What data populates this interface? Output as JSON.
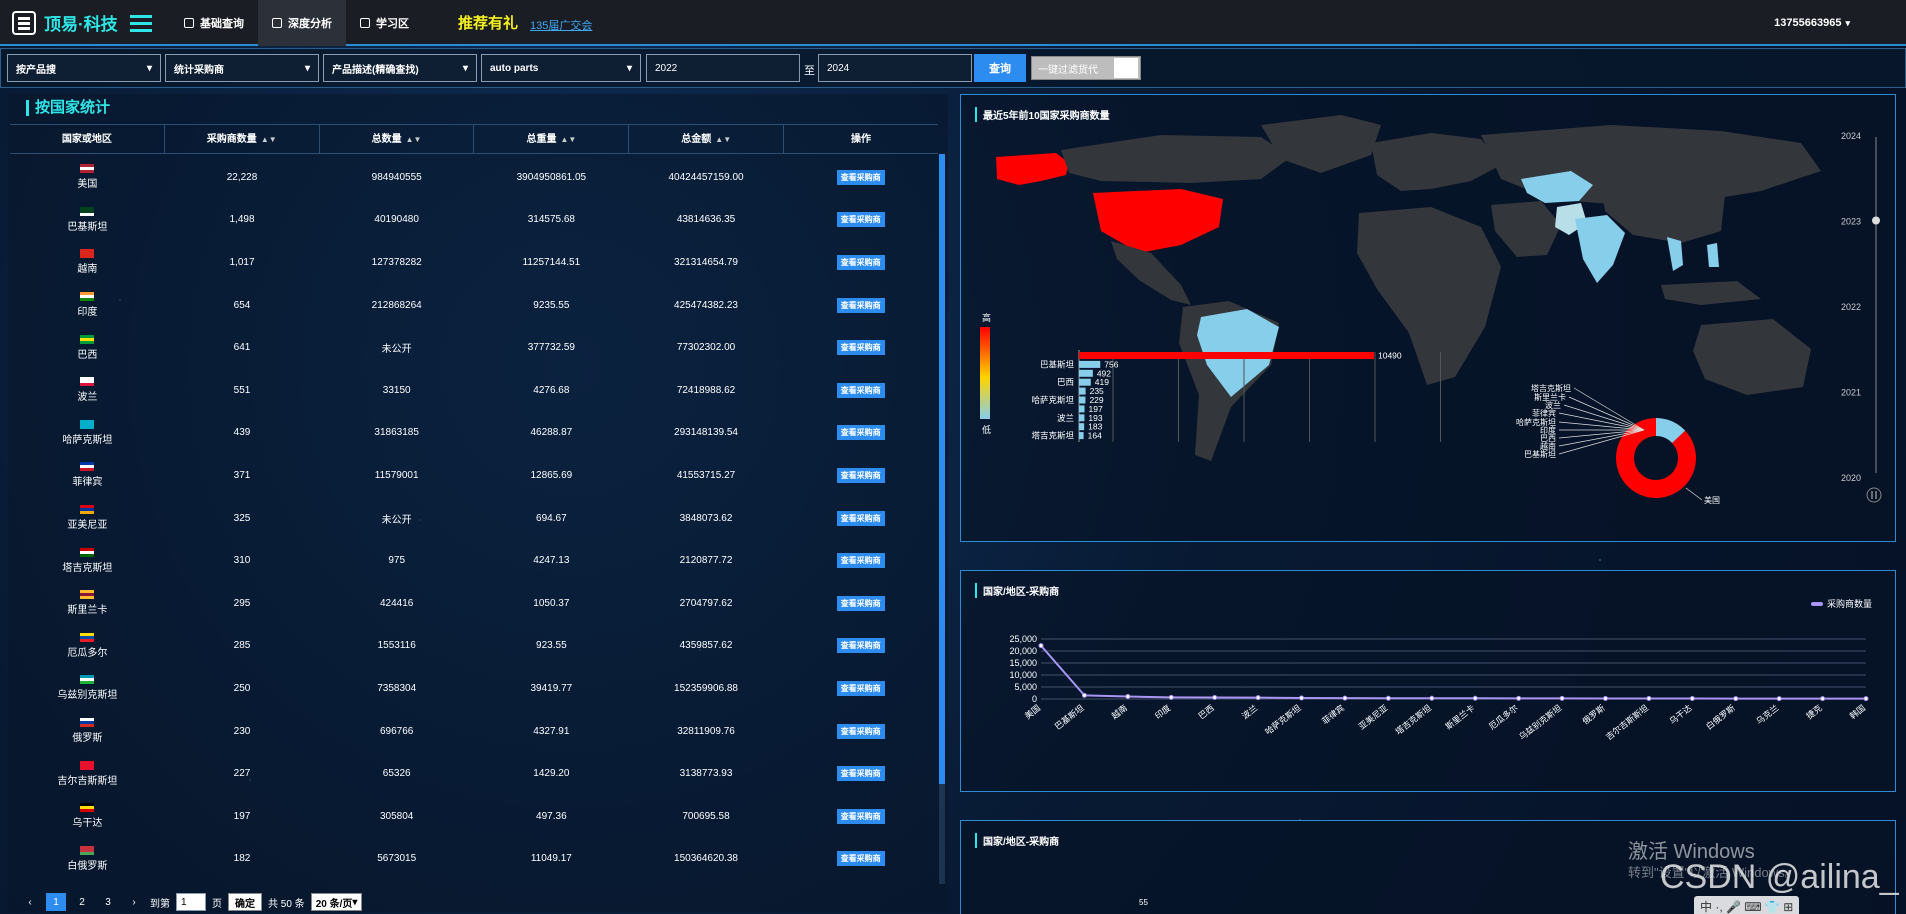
{
  "app": {
    "logo_text": "顶易·科技",
    "promo": "推荐有礼",
    "fair_link": "135届广交会",
    "phone": "13755663965"
  },
  "nav": [
    {
      "label": "基础查询"
    },
    {
      "label": "深度分析"
    },
    {
      "label": "学习区"
    }
  ],
  "filters": {
    "search_type": "按产品搜",
    "stat_type": "统计采购商",
    "desc_mode": "产品描述(精确查找)",
    "keyword": "auto parts",
    "year_from": "2022",
    "to_label": "至",
    "year_to": "2024",
    "query_label": "查询",
    "filter_goods_label": "一键过滤货代"
  },
  "left": {
    "title": "按国家统计",
    "columns": [
      "国家或地区",
      "采购商数量",
      "总数量",
      "总重量",
      "总金额",
      "操作"
    ],
    "rows": [
      {
        "country": "美国",
        "buyers": "22,228",
        "qty": "984940555",
        "weight": "3904950861.05",
        "amount": "40424457159.00",
        "action": "查看采购商",
        "flag": "us"
      },
      {
        "country": "巴基斯坦",
        "buyers": "1,498",
        "qty": "40190480",
        "weight": "314575.68",
        "amount": "43814636.35",
        "action": "查看采购商",
        "flag": "pk"
      },
      {
        "country": "越南",
        "buyers": "1,017",
        "qty": "127378282",
        "weight": "11257144.51",
        "amount": "321314654.79",
        "action": "查看采购商",
        "flag": "vn"
      },
      {
        "country": "印度",
        "buyers": "654",
        "qty": "212868264",
        "weight": "9235.55",
        "amount": "425474382.23",
        "action": "查看采购商",
        "flag": "in"
      },
      {
        "country": "巴西",
        "buyers": "641",
        "qty": "未公开",
        "weight": "377732.59",
        "amount": "77302302.00",
        "action": "查看采购商",
        "flag": "br"
      },
      {
        "country": "波兰",
        "buyers": "551",
        "qty": "33150",
        "weight": "4276.68",
        "amount": "72418988.62",
        "action": "查看采购商",
        "flag": "pl"
      },
      {
        "country": "哈萨克斯坦",
        "buyers": "439",
        "qty": "31863185",
        "weight": "46288.87",
        "amount": "293148139.54",
        "action": "查看采购商",
        "flag": "kz"
      },
      {
        "country": "菲律宾",
        "buyers": "371",
        "qty": "11579001",
        "weight": "12865.69",
        "amount": "41553715.27",
        "action": "查看采购商",
        "flag": "ph"
      },
      {
        "country": "亚美尼亚",
        "buyers": "325",
        "qty": "未公开",
        "weight": "694.67",
        "amount": "3848073.62",
        "action": "查看采购商",
        "flag": "am"
      },
      {
        "country": "塔吉克斯坦",
        "buyers": "310",
        "qty": "975",
        "weight": "4247.13",
        "amount": "2120877.72",
        "action": "查看采购商",
        "flag": "tj"
      },
      {
        "country": "斯里兰卡",
        "buyers": "295",
        "qty": "424416",
        "weight": "1050.37",
        "amount": "2704797.62",
        "action": "查看采购商",
        "flag": "lk"
      },
      {
        "country": "厄瓜多尔",
        "buyers": "285",
        "qty": "1553116",
        "weight": "923.55",
        "amount": "4359857.62",
        "action": "查看采购商",
        "flag": "ec"
      },
      {
        "country": "乌兹别克斯坦",
        "buyers": "250",
        "qty": "7358304",
        "weight": "39419.77",
        "amount": "152359906.88",
        "action": "查看采购商",
        "flag": "uz"
      },
      {
        "country": "俄罗斯",
        "buyers": "230",
        "qty": "696766",
        "weight": "4327.91",
        "amount": "32811909.76",
        "action": "查看采购商",
        "flag": "ru"
      },
      {
        "country": "吉尔吉斯斯坦",
        "buyers": "227",
        "qty": "65326",
        "weight": "1429.20",
        "amount": "3138773.93",
        "action": "查看采购商",
        "flag": "kg"
      },
      {
        "country": "乌干达",
        "buyers": "197",
        "qty": "305804",
        "weight": "497.36",
        "amount": "700695.58",
        "action": "查看采购商",
        "flag": "ug"
      },
      {
        "country": "白俄罗斯",
        "buyers": "182",
        "qty": "5673015",
        "weight": "11049.17",
        "amount": "150364620.38",
        "action": "查看采购商",
        "flag": "by"
      }
    ],
    "pager": {
      "pages": [
        "1",
        "2",
        "3"
      ],
      "current": "1",
      "goto_label": "到第",
      "goto_value": "1",
      "page_unit": "页",
      "confirm": "确定",
      "total": "共 50 条",
      "page_size": "20 条/页"
    }
  },
  "map_panel": {
    "title": "最近5年前10国家采购商数量",
    "legend_high": "高",
    "legend_low": "低",
    "timeline": [
      "2024",
      "2023",
      "2022",
      "2021",
      "2020"
    ],
    "timeline_current": "2023"
  },
  "panel2": {
    "title": "国家/地区-采购商"
  },
  "panel3": {
    "title": "国家/地区-采购商",
    "partial_label": "55"
  },
  "colors": {
    "accent": "#2ee6e6",
    "button": "#2d8cf0",
    "highlight": "#ff0000",
    "line": "#a995f2"
  },
  "chart_data": [
    {
      "type": "bar",
      "orientation": "horizontal",
      "categories": [
        "",
        "巴基斯坦",
        "",
        "巴西",
        "",
        "哈萨克斯坦",
        "",
        "波兰",
        "",
        "塔吉克斯坦"
      ],
      "values": [
        10490,
        756,
        492,
        419,
        235,
        229,
        197,
        193,
        183,
        164
      ]
    },
    {
      "type": "pie",
      "labels": [
        "塔吉克斯坦",
        "斯里兰卡",
        "波兰",
        "菲律宾",
        "哈萨克斯坦",
        "印度",
        "巴西",
        "越南",
        "巴基斯坦",
        "美国"
      ]
    },
    {
      "type": "line",
      "legend": [
        "采购商数量"
      ],
      "legend_position": "top-right",
      "categories": [
        "美国",
        "巴基斯坦",
        "越南",
        "印度",
        "巴西",
        "波兰",
        "哈萨克斯坦",
        "菲律宾",
        "亚美尼亚",
        "塔吉克斯坦",
        "斯里兰卡",
        "厄瓜多尔",
        "乌兹别克斯坦",
        "俄罗斯",
        "吉尔吉斯斯坦",
        "乌干达",
        "白俄罗斯",
        "乌克兰",
        "捷克",
        "韩国"
      ],
      "ytick_labels": [
        "25,000",
        "20,000",
        "15,000",
        "10,000",
        "5,000",
        "0"
      ],
      "ylim": [
        0,
        25000
      ],
      "series": [
        {
          "name": "采购商数量",
          "values": [
            22228,
            1498,
            1017,
            654,
            641,
            551,
            439,
            371,
            325,
            310,
            295,
            285,
            250,
            230,
            227,
            197,
            182,
            170,
            160,
            150
          ]
        }
      ]
    }
  ],
  "watermarks": {
    "win1": "激活 Windows",
    "win2": "转到\"设置\"以激活 Windows。",
    "csdn": "CSDN @ailina_",
    "tray": "中 ·, 🎤 ⌨ 👕 ⊞"
  }
}
